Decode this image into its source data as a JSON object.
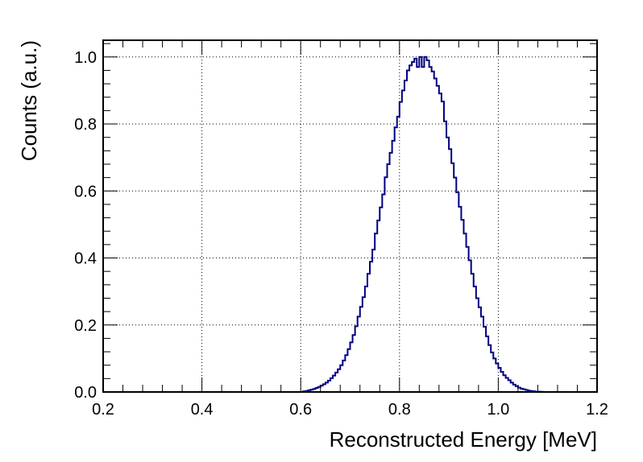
{
  "chart_data": {
    "type": "histogram-step",
    "xlabel": "Reconstructed Energy [MeV]",
    "ylabel": "Counts (a.u.)",
    "xlim": [
      0.2,
      1.2
    ],
    "ylim": [
      0.0,
      1.05
    ],
    "x_ticks": [
      0.2,
      0.4,
      0.6,
      0.8,
      1.0,
      1.2
    ],
    "x_tick_labels": [
      "0.2",
      "0.4",
      "0.6",
      "0.8",
      "1.0",
      "1.2"
    ],
    "y_ticks": [
      0.0,
      0.2,
      0.4,
      0.6,
      0.8,
      1.0
    ],
    "y_tick_labels": [
      "0.0",
      "0.2",
      "0.4",
      "0.6",
      "0.8",
      "1.0"
    ],
    "grid": true,
    "line_color": "#000080",
    "series": [
      {
        "bin_width": 0.005,
        "bin_edges_start": 0.6,
        "values": [
          0.0,
          0.002,
          0.003,
          0.005,
          0.007,
          0.009,
          0.012,
          0.015,
          0.019,
          0.023,
          0.028,
          0.034,
          0.041,
          0.049,
          0.058,
          0.068,
          0.08,
          0.094,
          0.11,
          0.128,
          0.148,
          0.17,
          0.196,
          0.225,
          0.254,
          0.283,
          0.315,
          0.353,
          0.389,
          0.425,
          0.473,
          0.512,
          0.551,
          0.59,
          0.641,
          0.68,
          0.714,
          0.75,
          0.79,
          0.822,
          0.866,
          0.9,
          0.93,
          0.96,
          0.975,
          0.985,
          0.995,
          0.97,
          1.0,
          0.97,
          1.0,
          0.99,
          0.97,
          0.957,
          0.936,
          0.914,
          0.891,
          0.867,
          0.808,
          0.76,
          0.725,
          0.683,
          0.64,
          0.596,
          0.553,
          0.514,
          0.473,
          0.433,
          0.393,
          0.353,
          0.315,
          0.28,
          0.253,
          0.225,
          0.195,
          0.166,
          0.14,
          0.118,
          0.1,
          0.085,
          0.072,
          0.06,
          0.05,
          0.042,
          0.035,
          0.028,
          0.022,
          0.017,
          0.013,
          0.01,
          0.008,
          0.006,
          0.004,
          0.003,
          0.002,
          0.001,
          0.001,
          0.0005,
          0.0
        ]
      }
    ]
  }
}
